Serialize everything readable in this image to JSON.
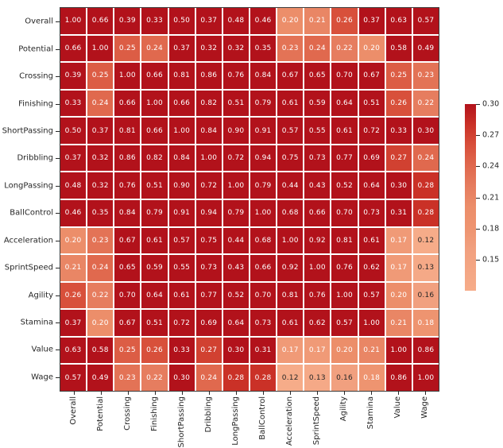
{
  "figure": {
    "background": "#ffffff",
    "title": ""
  },
  "chart_data": {
    "type": "heatmap",
    "title": "",
    "xlabel": "",
    "ylabel": "",
    "categories": [
      "Overall",
      "Potential",
      "Crossing",
      "Finishing",
      "ShortPassing",
      "Dribbling",
      "LongPassing",
      "BallControl",
      "Acceleration",
      "SprintSpeed",
      "Agility",
      "Stamina",
      "Value",
      "Wage"
    ],
    "matrix": [
      [
        1.0,
        0.66,
        0.39,
        0.33,
        0.5,
        0.37,
        0.48,
        0.46,
        0.2,
        0.21,
        0.26,
        0.37,
        0.63,
        0.57
      ],
      [
        0.66,
        1.0,
        0.25,
        0.24,
        0.37,
        0.32,
        0.32,
        0.35,
        0.23,
        0.24,
        0.22,
        0.2,
        0.58,
        0.49
      ],
      [
        0.39,
        0.25,
        1.0,
        0.66,
        0.81,
        0.86,
        0.76,
        0.84,
        0.67,
        0.65,
        0.7,
        0.67,
        0.25,
        0.23
      ],
      [
        0.33,
        0.24,
        0.66,
        1.0,
        0.66,
        0.82,
        0.51,
        0.79,
        0.61,
        0.59,
        0.64,
        0.51,
        0.26,
        0.22
      ],
      [
        0.5,
        0.37,
        0.81,
        0.66,
        1.0,
        0.84,
        0.9,
        0.91,
        0.57,
        0.55,
        0.61,
        0.72,
        0.33,
        0.3
      ],
      [
        0.37,
        0.32,
        0.86,
        0.82,
        0.84,
        1.0,
        0.72,
        0.94,
        0.75,
        0.73,
        0.77,
        0.69,
        0.27,
        0.24
      ],
      [
        0.48,
        0.32,
        0.76,
        0.51,
        0.9,
        0.72,
        1.0,
        0.79,
        0.44,
        0.43,
        0.52,
        0.64,
        0.3,
        0.28
      ],
      [
        0.46,
        0.35,
        0.84,
        0.79,
        0.91,
        0.94,
        0.79,
        1.0,
        0.68,
        0.66,
        0.7,
        0.73,
        0.31,
        0.28
      ],
      [
        0.2,
        0.23,
        0.67,
        0.61,
        0.57,
        0.75,
        0.44,
        0.68,
        1.0,
        0.92,
        0.81,
        0.61,
        0.17,
        0.12
      ],
      [
        0.21,
        0.24,
        0.65,
        0.59,
        0.55,
        0.73,
        0.43,
        0.66,
        0.92,
        1.0,
        0.76,
        0.62,
        0.17,
        0.13
      ],
      [
        0.26,
        0.22,
        0.7,
        0.64,
        0.61,
        0.77,
        0.52,
        0.7,
        0.81,
        0.76,
        1.0,
        0.57,
        0.2,
        0.16
      ],
      [
        0.37,
        0.2,
        0.67,
        0.51,
        0.72,
        0.69,
        0.64,
        0.73,
        0.61,
        0.62,
        0.57,
        1.0,
        0.21,
        0.18
      ],
      [
        0.63,
        0.58,
        0.25,
        0.26,
        0.33,
        0.27,
        0.3,
        0.31,
        0.17,
        0.17,
        0.2,
        0.21,
        1.0,
        0.86
      ],
      [
        0.57,
        0.49,
        0.23,
        0.22,
        0.3,
        0.24,
        0.28,
        0.28,
        0.12,
        0.13,
        0.16,
        0.18,
        0.86,
        1.0
      ]
    ],
    "vmin": 0.12,
    "vmax": 0.3,
    "legend_position": "colorbar-right",
    "colorbar_tick_labels": [
      "0.30",
      "0.27",
      "0.24",
      "0.21",
      "0.18",
      "0.15"
    ],
    "colorbar_tick_values": [
      0.3,
      0.27,
      0.24,
      0.21,
      0.18,
      0.15
    ],
    "colormap_stops": [
      {
        "v": 0.12,
        "color": "#f6ac89"
      },
      {
        "v": 0.16,
        "color": "#f1a07f"
      },
      {
        "v": 0.18,
        "color": "#ee9470"
      },
      {
        "v": 0.2,
        "color": "#ec8e6a"
      },
      {
        "v": 0.22,
        "color": "#e67d5f"
      },
      {
        "v": 0.24,
        "color": "#e0694e"
      },
      {
        "v": 0.26,
        "color": "#d8503b"
      },
      {
        "v": 0.28,
        "color": "#ca3127"
      },
      {
        "v": 0.3,
        "color": "#b2121b"
      }
    ],
    "saturated_color": "#b2121b",
    "gridline_color": "#ffffff",
    "grid": "on",
    "annotation_decimals": 2,
    "annotation_color_light": "#ffffff",
    "annotation_color_dark": "#262626",
    "dark_text_threshold": 0.165,
    "axis_text_color": "#262626",
    "spine_color": "#3c3c3c"
  }
}
